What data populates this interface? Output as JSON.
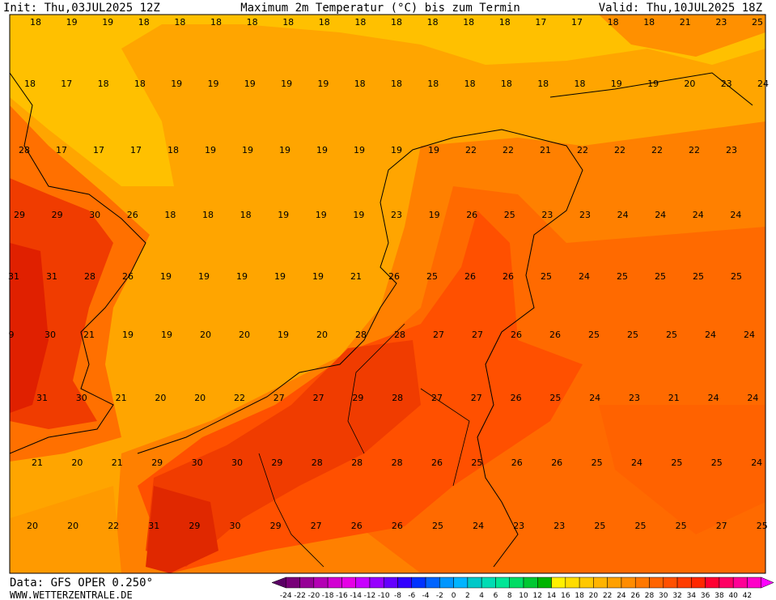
{
  "header": {
    "init": "Init: Thu,03JUL2025 12Z",
    "title": "Maximum 2m Temperatur (°C) bis zum Termin",
    "valid": "Valid: Thu,10JUL2025 18Z"
  },
  "map": {
    "rows": [
      [
        18,
        19,
        19,
        18,
        18,
        18,
        18,
        18,
        18,
        18,
        18,
        18,
        18,
        18,
        17,
        17,
        18,
        18,
        21,
        23,
        25
      ],
      [
        18,
        17,
        18,
        18,
        19,
        19,
        19,
        19,
        19,
        18,
        18,
        18,
        18,
        18,
        18,
        18,
        19,
        19,
        20,
        23,
        24
      ],
      [
        28,
        17,
        17,
        17,
        18,
        19,
        19,
        19,
        19,
        19,
        19,
        19,
        22,
        22,
        21,
        22,
        22,
        22,
        22,
        23
      ],
      [
        29,
        29,
        30,
        26,
        18,
        18,
        18,
        19,
        19,
        19,
        23,
        19,
        26,
        25,
        23,
        23,
        24,
        24,
        24,
        24
      ],
      [
        31,
        31,
        28,
        26,
        19,
        19,
        19,
        19,
        19,
        21,
        26,
        25,
        26,
        26,
        25,
        24,
        25,
        25,
        25,
        25
      ],
      [
        9,
        30,
        21,
        19,
        19,
        20,
        20,
        19,
        20,
        28,
        28,
        27,
        27,
        26,
        26,
        25,
        25,
        25,
        24,
        24
      ],
      [
        31,
        30,
        21,
        20,
        20,
        22,
        27,
        27,
        29,
        28,
        27,
        27,
        26,
        25,
        24,
        23,
        21,
        24,
        24
      ],
      [
        21,
        20,
        21,
        29,
        30,
        30,
        29,
        28,
        28,
        28,
        26,
        25,
        26,
        26,
        25,
        24,
        25,
        25,
        24
      ],
      [
        20,
        20,
        22,
        31,
        29,
        30,
        29,
        27,
        26,
        26,
        25,
        24,
        23,
        23,
        25,
        25,
        25,
        27,
        25
      ]
    ]
  },
  "footer": {
    "data": "Data: GFS OPER 0.250°",
    "source": "WWW.WETTERZENTRALE.DE"
  },
  "colorbar": {
    "labels": [
      -24,
      -22,
      -20,
      -18,
      -16,
      -14,
      -12,
      -10,
      -8,
      -6,
      -4,
      -2,
      0,
      2,
      4,
      6,
      8,
      10,
      12,
      14,
      16,
      18,
      20,
      22,
      24,
      26,
      28,
      30,
      32,
      34,
      36,
      38,
      40,
      42
    ],
    "colors": [
      "#5a0064",
      "#780078",
      "#960096",
      "#b400b4",
      "#d200d2",
      "#e600e6",
      "#c800ff",
      "#9600ff",
      "#6400ff",
      "#3200ff",
      "#0032ff",
      "#0064ff",
      "#0096ff",
      "#00b4ff",
      "#00c8c8",
      "#00dcb4",
      "#00e696",
      "#00dc64",
      "#00c832",
      "#00b400",
      "#fff000",
      "#ffdc00",
      "#ffc800",
      "#ffb400",
      "#ffa000",
      "#ff8c00",
      "#ff7800",
      "#ff6400",
      "#ff5000",
      "#ff3c00",
      "#ff2800",
      "#ff0032",
      "#ff0064",
      "#ff0096",
      "#ff00c8",
      "#ff00ff"
    ]
  }
}
